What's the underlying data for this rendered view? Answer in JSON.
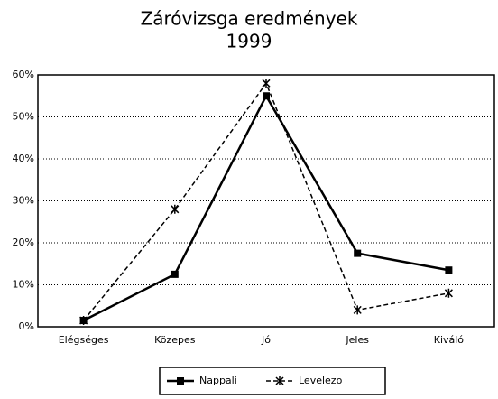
{
  "chart_data": {
    "type": "line",
    "title": "Záróvizsga eredmények",
    "subtitle": "1999",
    "categories": [
      "Elégséges",
      "Közepes",
      "Jó",
      "Jeles",
      "Kiváló"
    ],
    "series": [
      {
        "name": "Nappali",
        "color": "#000000",
        "values": [
          1.5,
          12.5,
          55,
          17.5,
          13.5
        ]
      },
      {
        "name": "Levelezo",
        "color": "#000000",
        "values": [
          1.5,
          28,
          58,
          4,
          8
        ]
      }
    ],
    "ylim": [
      0,
      60
    ],
    "yticks": [
      {
        "value": 0,
        "label": "0%"
      },
      {
        "value": 10,
        "label": "10%"
      },
      {
        "value": 20,
        "label": "20%"
      },
      {
        "value": 30,
        "label": "30%"
      },
      {
        "value": 40,
        "label": "40%"
      },
      {
        "value": 50,
        "label": "50%"
      },
      {
        "value": 60,
        "label": "60%"
      }
    ],
    "grid": true,
    "legend": "bottom"
  }
}
